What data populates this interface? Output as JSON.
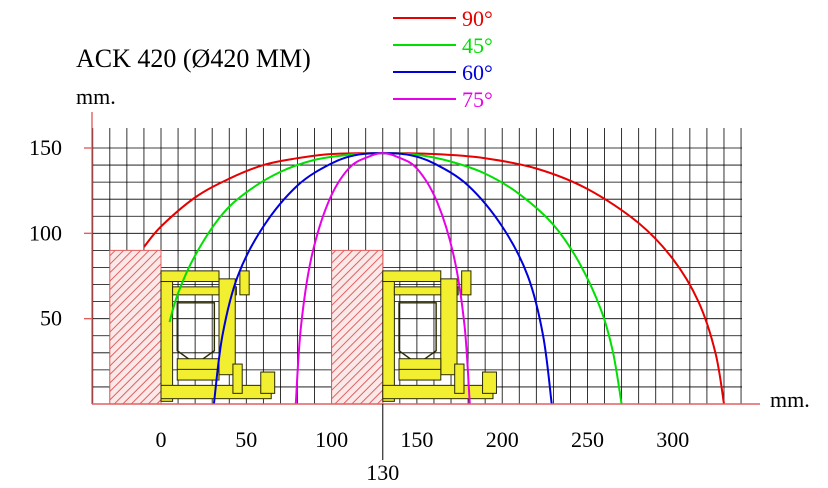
{
  "chart_data": {
    "type": "line",
    "title": "ACK 420 (Ø420 MM)",
    "xlabel": "mm.",
    "ylabel": "mm.",
    "xlim": [
      -40,
      350
    ],
    "ylim": [
      0,
      150
    ],
    "x_ticks": [
      0,
      50,
      100,
      150,
      200,
      250,
      300
    ],
    "y_ticks": [
      50,
      100,
      150
    ],
    "x_tick_labels": [
      "0",
      "50",
      "100",
      "150",
      "200",
      "250",
      "300"
    ],
    "y_tick_labels": [
      "50",
      "100",
      "150"
    ],
    "extra_x_label": {
      "value": 130,
      "text": "130"
    },
    "grid": true,
    "legend_position": "top",
    "series": [
      {
        "name": "90°",
        "color": "#e60000",
        "points": [
          [
            -10,
            92
          ],
          [
            0,
            104
          ],
          [
            20,
            121
          ],
          [
            40,
            132
          ],
          [
            60,
            140
          ],
          [
            80,
            144
          ],
          [
            100,
            146.5
          ],
          [
            130,
            147
          ],
          [
            160,
            146.5
          ],
          [
            190,
            144
          ],
          [
            220,
            138
          ],
          [
            250,
            126
          ],
          [
            280,
            106
          ],
          [
            300,
            85
          ],
          [
            315,
            60
          ],
          [
            325,
            30
          ],
          [
            330,
            0
          ]
        ]
      },
      {
        "name": "45°",
        "color": "#00e000",
        "points": [
          [
            5,
            48
          ],
          [
            10,
            65
          ],
          [
            20,
            87
          ],
          [
            35,
            110
          ],
          [
            50,
            124
          ],
          [
            70,
            136
          ],
          [
            90,
            143
          ],
          [
            110,
            146
          ],
          [
            130,
            147
          ],
          [
            150,
            146
          ],
          [
            170,
            142
          ],
          [
            190,
            135
          ],
          [
            210,
            123
          ],
          [
            230,
            105
          ],
          [
            245,
            83
          ],
          [
            258,
            55
          ],
          [
            265,
            30
          ],
          [
            270,
            0
          ]
        ]
      },
      {
        "name": "60°",
        "color": "#0000dd",
        "points": [
          [
            31,
            0
          ],
          [
            36,
            40
          ],
          [
            45,
            75
          ],
          [
            60,
            104
          ],
          [
            80,
            128
          ],
          [
            100,
            141
          ],
          [
            115,
            146
          ],
          [
            130,
            147
          ],
          [
            145,
            146
          ],
          [
            160,
            141
          ],
          [
            180,
            128
          ],
          [
            200,
            104
          ],
          [
            215,
            75
          ],
          [
            224,
            40
          ],
          [
            229,
            0
          ]
        ]
      },
      {
        "name": "75°",
        "color": "#e800e8",
        "points": [
          [
            79,
            0
          ],
          [
            82,
            45
          ],
          [
            88,
            85
          ],
          [
            98,
            118
          ],
          [
            110,
            138
          ],
          [
            122,
            145
          ],
          [
            130,
            147
          ],
          [
            138,
            145
          ],
          [
            150,
            138
          ],
          [
            162,
            118
          ],
          [
            172,
            85
          ],
          [
            178,
            45
          ],
          [
            181,
            0
          ]
        ]
      }
    ],
    "hatched_regions": [
      {
        "x": [
          -30,
          0
        ],
        "y": [
          0,
          90
        ]
      },
      {
        "x": [
          100,
          130
        ],
        "y": [
          0,
          90
        ]
      }
    ],
    "profile_sections": [
      {
        "x": [
          0,
          68
        ],
        "y": [
          0,
          78
        ]
      },
      {
        "x": [
          130,
          198
        ],
        "y": [
          0,
          78
        ]
      }
    ]
  }
}
